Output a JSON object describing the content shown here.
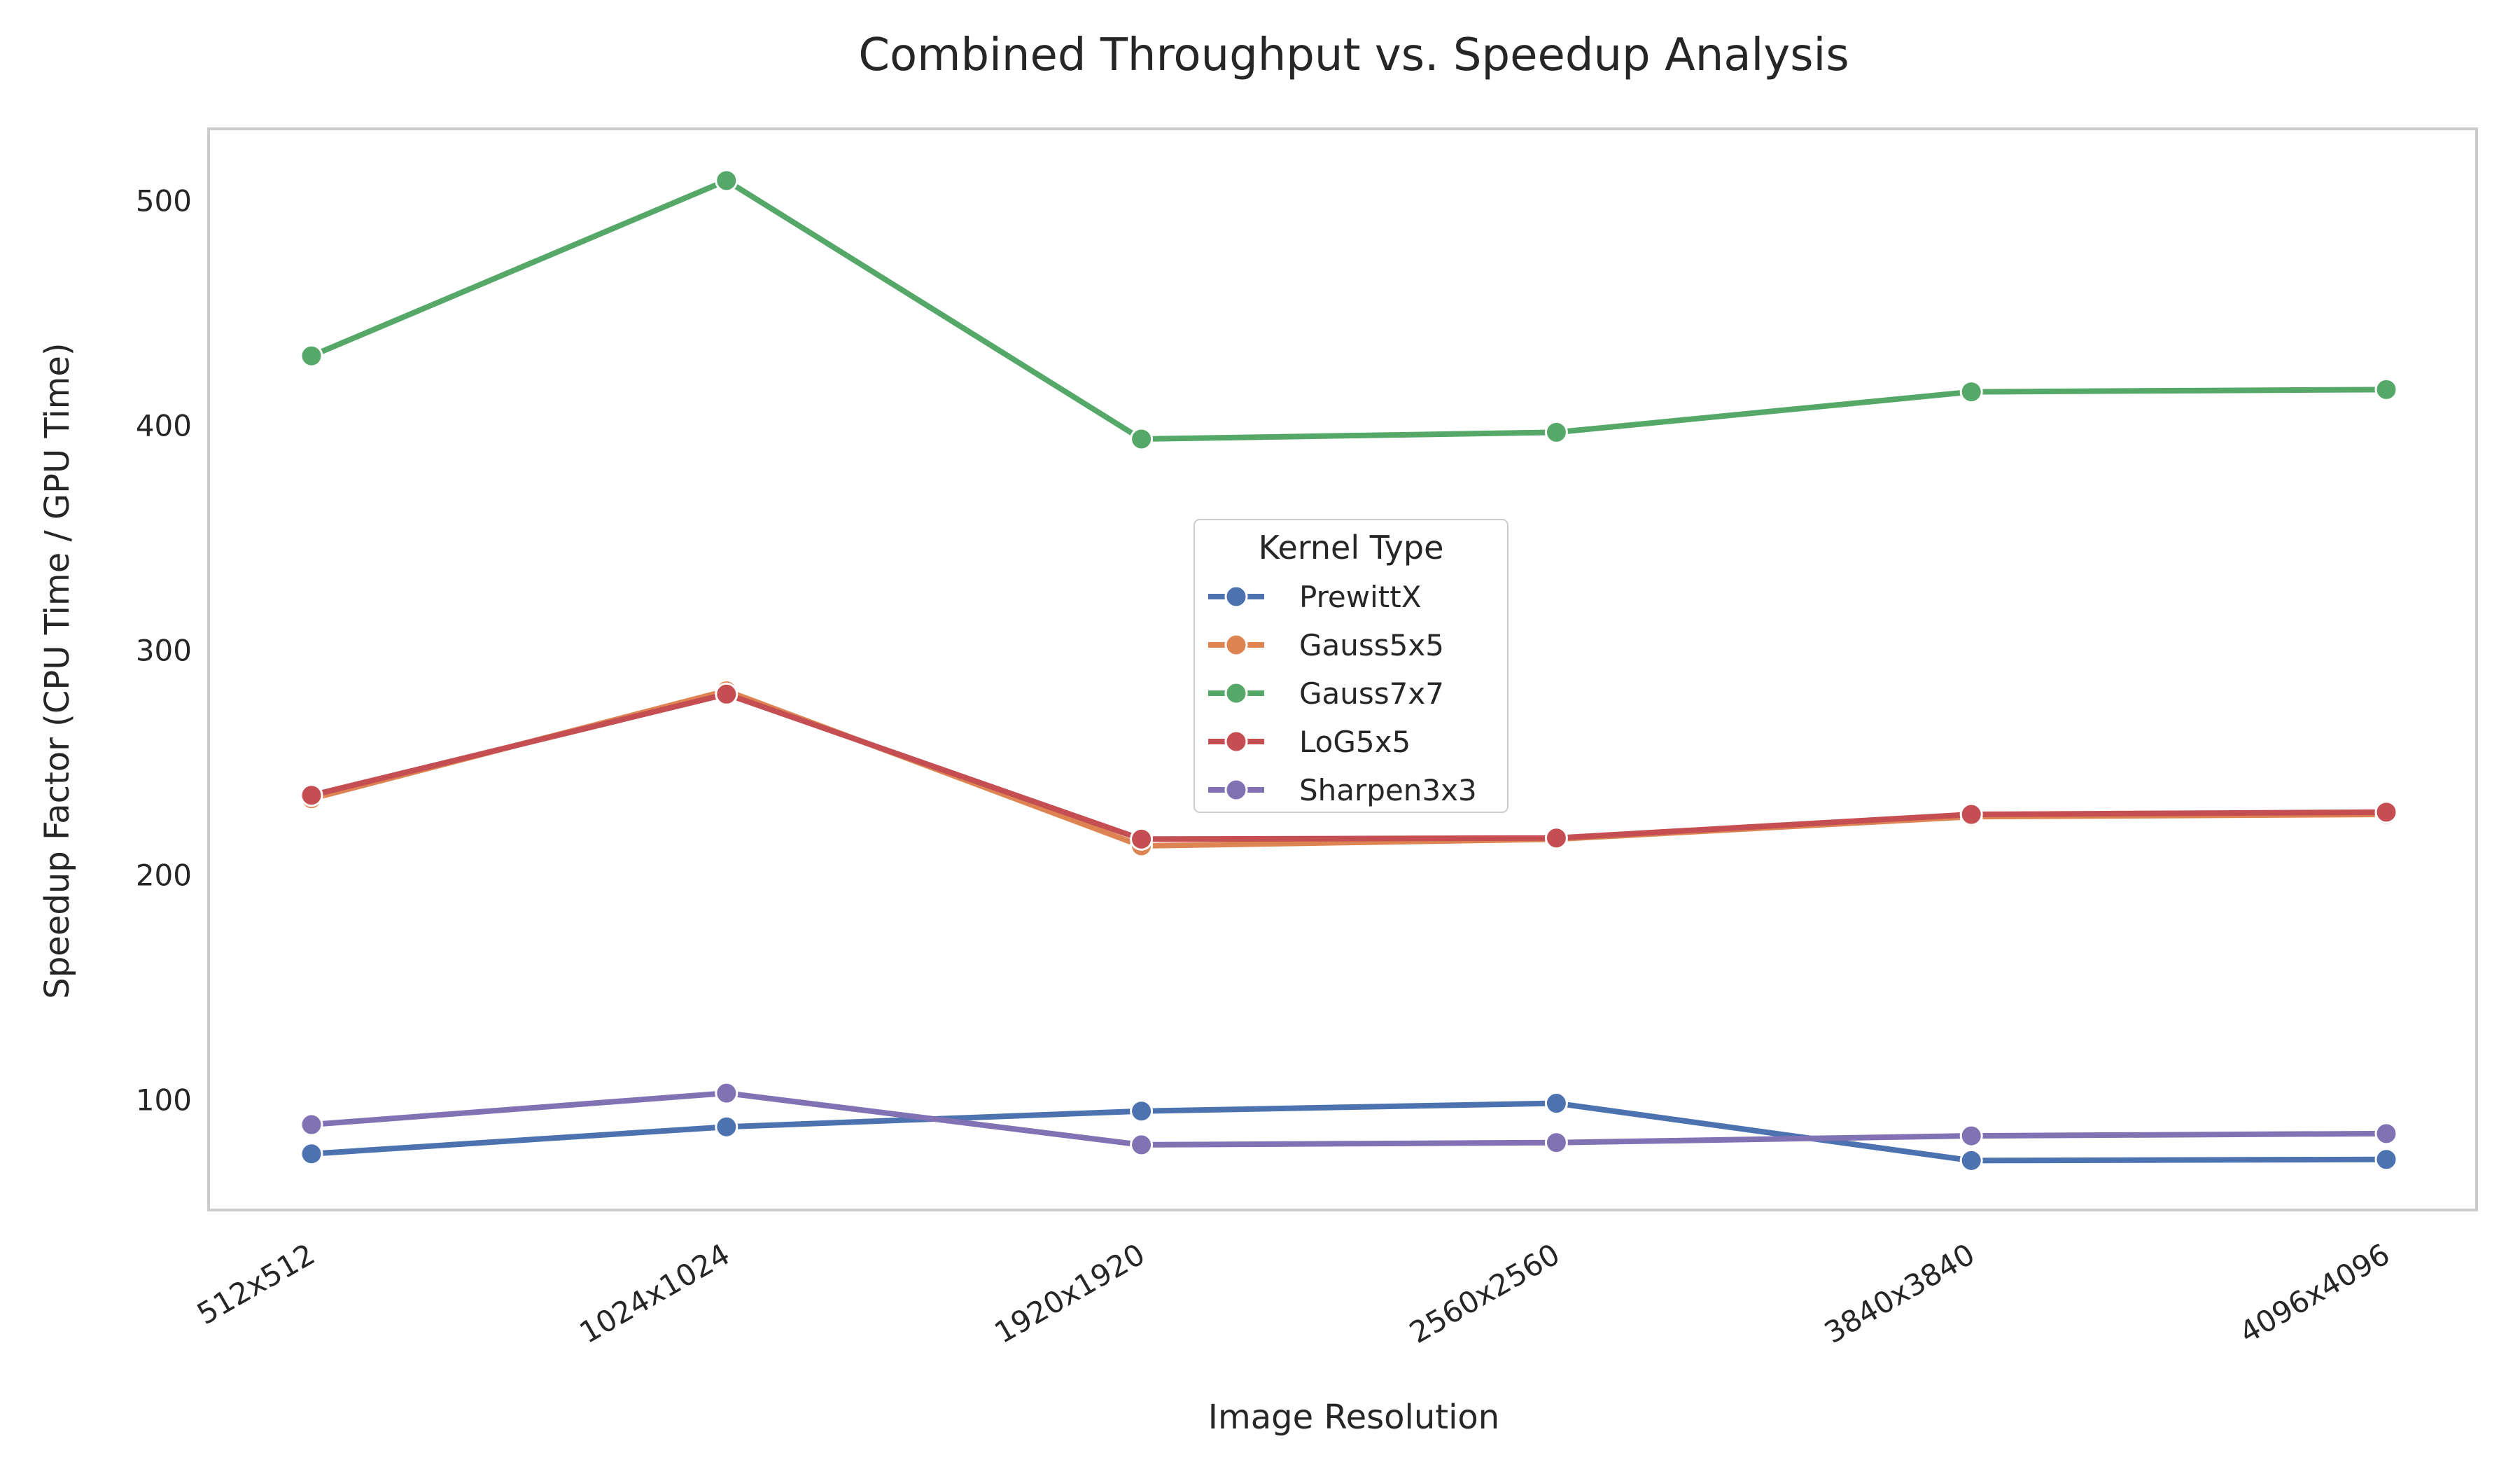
{
  "chart_data": {
    "type": "line",
    "title": "Combined Throughput vs. Speedup Analysis",
    "xlabel": "Image Resolution",
    "ylabel": "Speedup Factor (CPU Time / GPU Time)",
    "categories": [
      "512x512",
      "1024x1024",
      "1920x1920",
      "2560x2560",
      "3840x3840",
      "4096x4096"
    ],
    "ylim": [
      51,
      532
    ],
    "yticks": [
      100,
      200,
      300,
      400,
      500
    ],
    "grid": true,
    "legend": {
      "title": "Kernel Type",
      "placement": "center"
    },
    "series": [
      {
        "name": "PrewittX",
        "color": "#4c72b0",
        "values": [
          76,
          88,
          95,
          98.5,
          73,
          73.5
        ]
      },
      {
        "name": "Gauss5x5",
        "color": "#dd8452",
        "values": [
          234,
          282,
          213,
          216,
          226,
          227
        ]
      },
      {
        "name": "Gauss7x7",
        "color": "#55a868",
        "values": [
          431,
          509,
          394,
          397,
          415,
          416
        ]
      },
      {
        "name": "LoG5x5",
        "color": "#c44e52",
        "values": [
          235.5,
          280.5,
          216,
          216.5,
          227,
          228
        ]
      },
      {
        "name": "Sharpen3x3",
        "color": "#8172b3",
        "values": [
          89,
          103,
          80,
          81,
          84,
          85
        ]
      }
    ]
  }
}
